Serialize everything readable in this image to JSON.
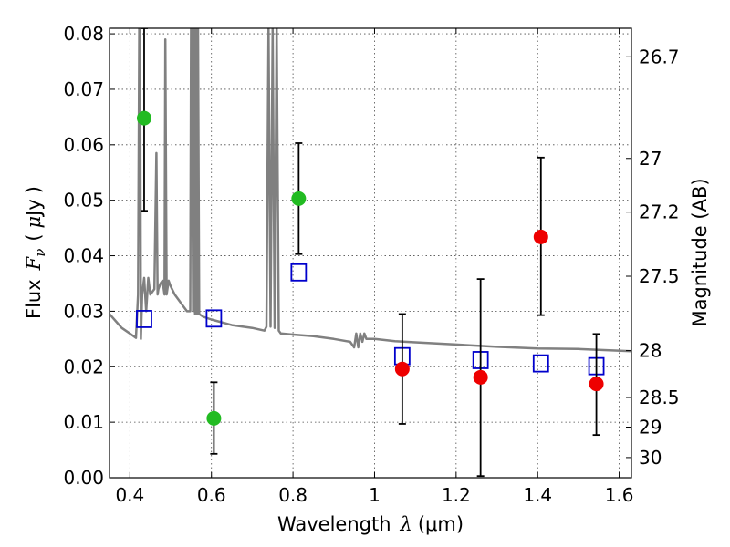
{
  "chart_data": {
    "type": "scatter",
    "xlabel": "Wavelength  λ (μm)",
    "ylabel": "Flux  F_ν  ( μJy )",
    "ylabel_parts": {
      "flux": "Flux",
      "F": "F",
      "nu": "ν",
      "open": "(",
      "mu": "μ",
      "unit": "Jy",
      "close": ")"
    },
    "xlabel_parts": {
      "word": "Wavelength",
      "lambda": "λ",
      "unit": "(μm)"
    },
    "y2label": "Magnitude (AB)",
    "xlim": [
      0.35,
      1.63
    ],
    "ylim": [
      0.0,
      0.081
    ],
    "grid": true,
    "x_ticks": [
      0.4,
      0.6,
      0.8,
      1.0,
      1.2,
      1.4,
      1.6
    ],
    "x_tick_labels": [
      "0.4",
      "0.6",
      "0.8",
      "1",
      "1.2",
      "1.4",
      "1.6"
    ],
    "y_ticks": [
      0.0,
      0.01,
      0.02,
      0.03,
      0.04,
      0.05,
      0.06,
      0.07,
      0.08
    ],
    "y_tick_labels": [
      "0.00",
      "0.01",
      "0.02",
      "0.03",
      "0.04",
      "0.05",
      "0.06",
      "0.07",
      "0.08"
    ],
    "y2_ticks": [
      26.7,
      27.0,
      27.2,
      27.5,
      28.0,
      28.5,
      29.0,
      30.0
    ],
    "y2_tick_labels": [
      "26.7",
      "27",
      "27.2",
      "27.5",
      "28",
      "28.5",
      "29",
      "30"
    ],
    "colors": {
      "optical_points": "#22bb22",
      "nir_points": "#ee0000",
      "model_boxes": "#0000cc",
      "spectrum": "#808080",
      "errorbars": "#000000"
    },
    "series": [
      {
        "marker": "circle",
        "color": "#22bb22",
        "x": [
          0.435,
          0.606,
          0.814
        ],
        "y": [
          0.0648,
          0.0107,
          0.0503
        ],
        "yerr_low": [
          0.0481,
          0.0043,
          0.0403
        ],
        "yerr_high": [
          0.081,
          0.0172,
          0.0603
        ]
      },
      {
        "marker": "circle",
        "color": "#ee0000",
        "x": [
          1.068,
          1.26,
          1.408,
          1.544
        ],
        "y": [
          0.0196,
          0.0181,
          0.0434,
          0.0169
        ],
        "yerr_low": [
          0.0097,
          0.0003,
          0.0293,
          0.0077
        ],
        "yerr_high": [
          0.0295,
          0.0358,
          0.0577,
          0.0259
        ]
      },
      {
        "marker": "open-square",
        "color": "#0000cc",
        "x": [
          0.435,
          0.606,
          0.814,
          1.068,
          1.26,
          1.408,
          1.544
        ],
        "y": [
          0.0286,
          0.0287,
          0.037,
          0.0219,
          0.0212,
          0.0206,
          0.0201
        ]
      },
      {
        "marker": "line",
        "color": "#808080",
        "x": [
          0.35,
          0.38,
          0.4,
          0.415,
          0.42,
          0.423,
          0.425,
          0.427,
          0.43,
          0.435,
          0.44,
          0.445,
          0.45,
          0.46,
          0.465,
          0.468,
          0.47,
          0.475,
          0.48,
          0.485,
          0.487,
          0.49,
          0.495,
          0.5,
          0.51,
          0.52,
          0.53,
          0.54,
          0.548,
          0.55,
          0.552,
          0.555,
          0.558,
          0.56,
          0.563,
          0.565,
          0.567,
          0.57,
          0.58,
          0.6,
          0.65,
          0.7,
          0.73,
          0.735,
          0.74,
          0.745,
          0.75,
          0.755,
          0.76,
          0.765,
          0.77,
          0.8,
          0.85,
          0.9,
          0.94,
          0.95,
          0.955,
          0.96,
          0.965,
          0.97,
          0.975,
          0.98,
          1.0,
          1.05,
          1.1,
          1.2,
          1.3,
          1.4,
          1.5,
          1.63
        ],
        "y": [
          0.0295,
          0.027,
          0.026,
          0.0252,
          0.033,
          0.081,
          0.081,
          0.025,
          0.033,
          0.036,
          0.03,
          0.036,
          0.033,
          0.034,
          0.0585,
          0.033,
          0.034,
          0.035,
          0.0355,
          0.033,
          0.079,
          0.033,
          0.0355,
          0.0345,
          0.033,
          0.032,
          0.031,
          0.03,
          0.03,
          0.081,
          0.081,
          0.03,
          0.081,
          0.0295,
          0.081,
          0.0295,
          0.081,
          0.0295,
          0.029,
          0.0285,
          0.0275,
          0.027,
          0.0265,
          0.0272,
          0.081,
          0.0272,
          0.081,
          0.027,
          0.081,
          0.0265,
          0.026,
          0.0258,
          0.0255,
          0.025,
          0.0245,
          0.0235,
          0.026,
          0.0235,
          0.026,
          0.0245,
          0.026,
          0.025,
          0.025,
          0.0246,
          0.0244,
          0.024,
          0.0236,
          0.0233,
          0.0232,
          0.0228
        ]
      }
    ]
  }
}
